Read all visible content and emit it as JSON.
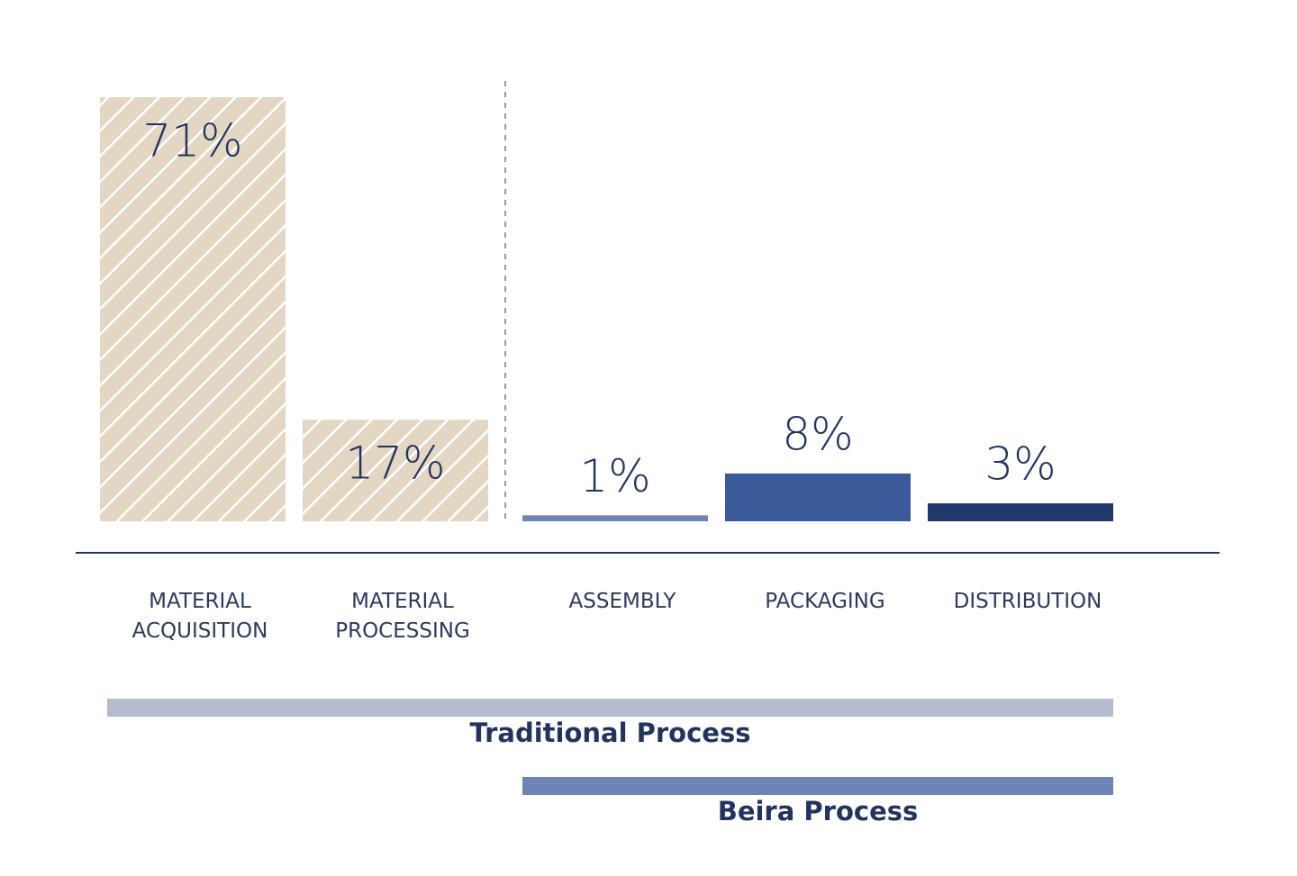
{
  "chart_data": {
    "type": "bar",
    "categories": [
      "MATERIAL ACQUISITION",
      "MATERIAL PROCESSING",
      "ASSEMBLY",
      "PACKAGING",
      "DISTRIBUTION"
    ],
    "values": [
      71,
      17,
      1,
      8,
      3
    ],
    "value_labels": [
      "71%",
      "17%",
      "1%",
      "8%",
      "3%"
    ],
    "colors": [
      "#e3d6c2",
      "#e3d6c2",
      "#6e84b5",
      "#3a5a99",
      "#22386a"
    ],
    "hatch": [
      true,
      true,
      false,
      false,
      false
    ],
    "ylim": [
      0,
      71
    ],
    "groups": [
      {
        "name": "Traditional Process",
        "from": 0,
        "to": 4,
        "color": "#b3bccf"
      },
      {
        "name": "Beira Process",
        "from": 2,
        "to": 4,
        "color": "#6e84b5"
      }
    ]
  }
}
